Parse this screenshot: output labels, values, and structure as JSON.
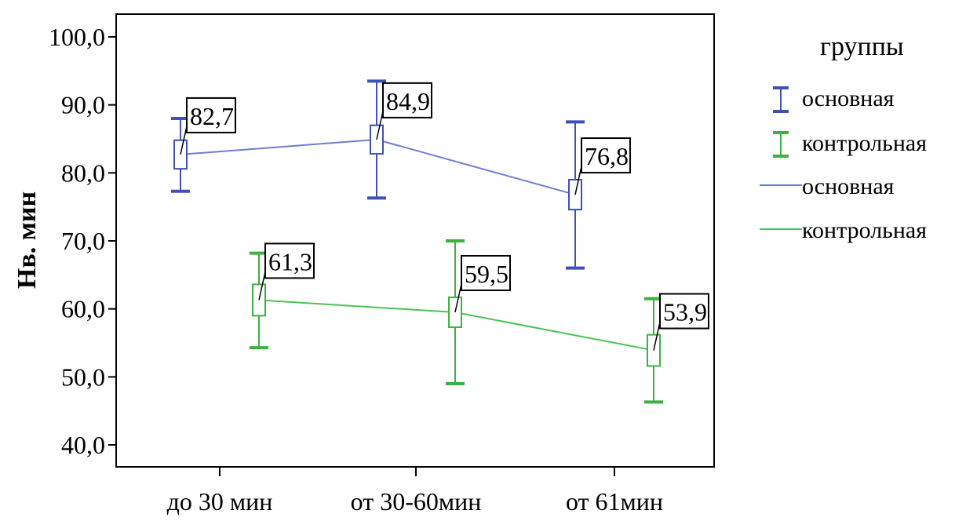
{
  "chart_data": {
    "type": "line",
    "ylabel": "Нв. мин",
    "xlabel": "",
    "title": "",
    "categories": [
      "до 30 мин",
      "от 30-60мин",
      "от 61мин"
    ],
    "ylim": [
      40,
      100
    ],
    "yticks": [
      "40,0",
      "50,0",
      "60,0",
      "70,0",
      "80,0",
      "90,0",
      "100,0"
    ],
    "grid": false,
    "error_bars": true,
    "legend": {
      "title": "группы",
      "placement": "right",
      "entries": [
        {
          "label": "основная",
          "kind": "error-bar",
          "color": "#3f51b5"
        },
        {
          "label": "контрольная",
          "kind": "error-bar",
          "color": "#3cb043"
        },
        {
          "label": "основная",
          "kind": "line",
          "color": "#6a7fd1"
        },
        {
          "label": "контрольная",
          "kind": "line",
          "color": "#4cc257"
        }
      ]
    },
    "series": [
      {
        "key": "main",
        "color": "#3f51b5",
        "line_color": "#6a7fd1",
        "values": [
          82.7,
          84.9,
          76.8
        ],
        "labels": [
          "82,7",
          "84,9",
          "76,8"
        ],
        "ci_low": [
          77.3,
          76.3,
          66.0
        ],
        "ci_high": [
          88.0,
          93.5,
          87.5
        ],
        "box_low": [
          80.6,
          82.8,
          74.6
        ],
        "box_high": [
          84.8,
          87.0,
          79.0
        ]
      },
      {
        "key": "control",
        "color": "#3cb043",
        "line_color": "#4cc257",
        "values": [
          61.3,
          59.5,
          53.9
        ],
        "labels": [
          "61,3",
          "59,5",
          "53,9"
        ],
        "ci_low": [
          54.3,
          49.0,
          46.3
        ],
        "ci_high": [
          68.2,
          70.0,
          61.5
        ],
        "box_low": [
          59.0,
          57.3,
          51.6
        ],
        "box_high": [
          63.6,
          61.7,
          56.2
        ]
      }
    ]
  }
}
